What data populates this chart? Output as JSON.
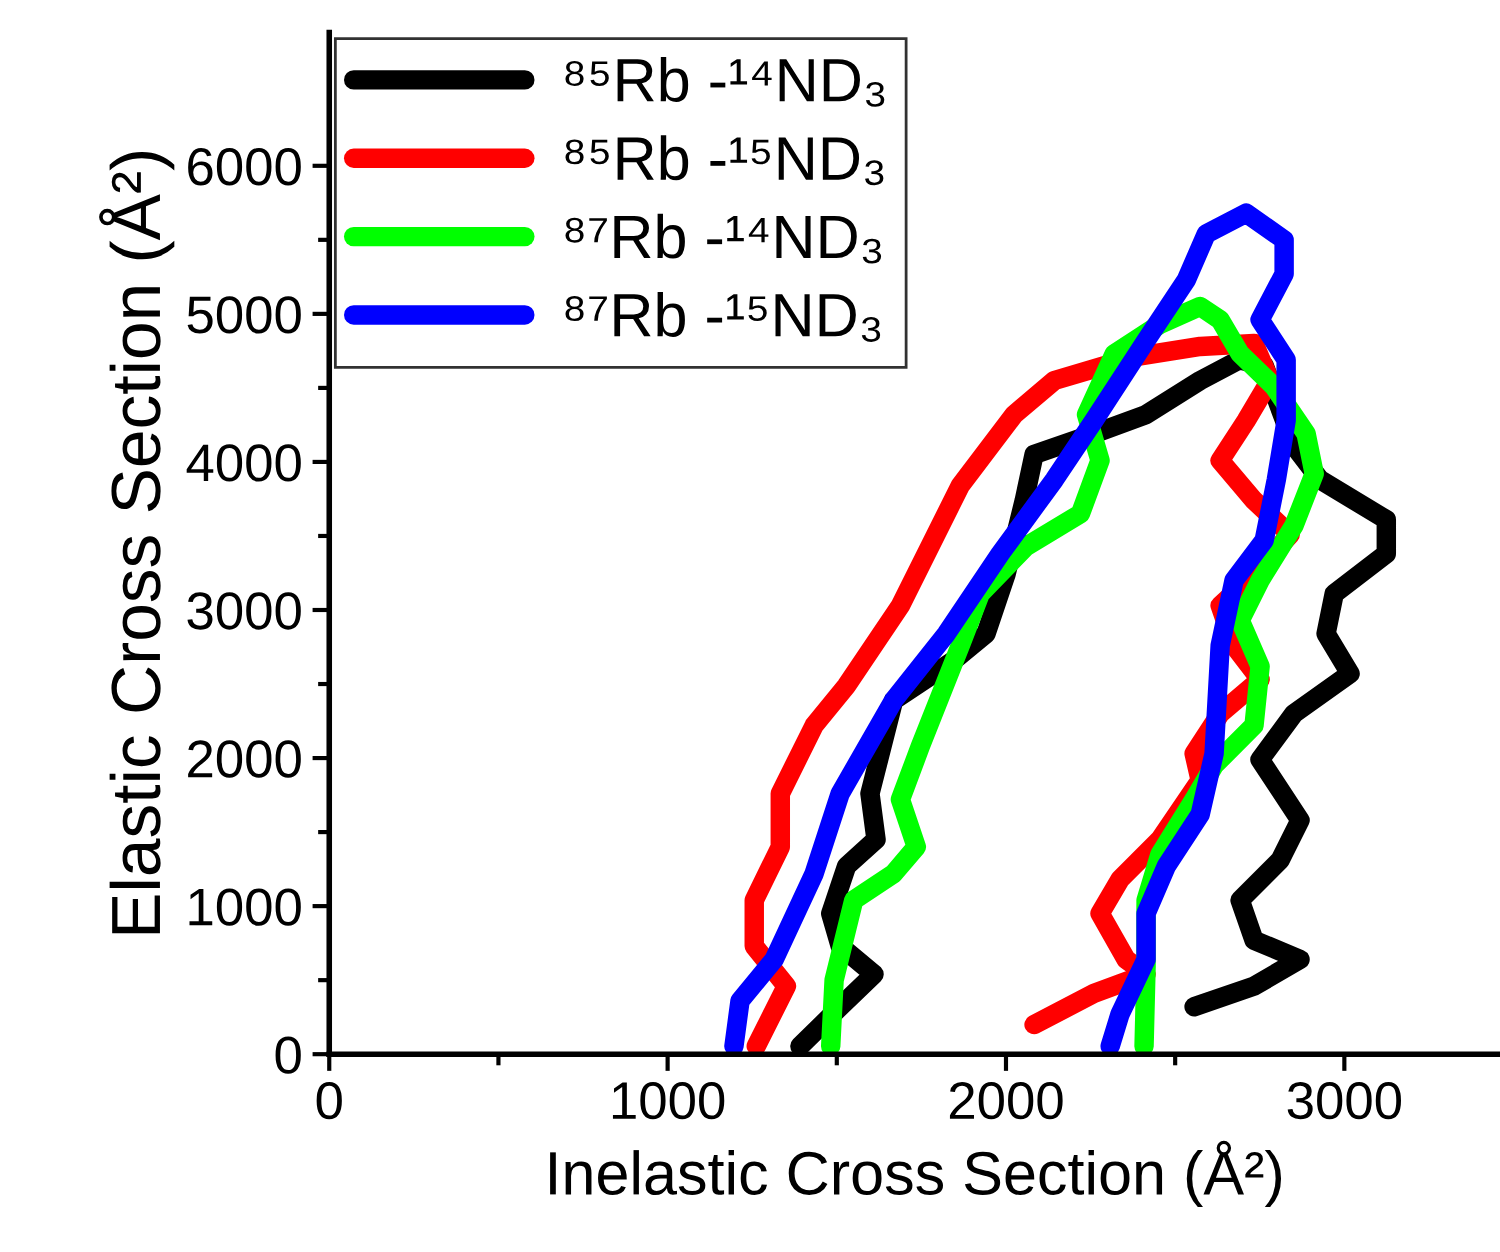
{
  "chart_data": {
    "type": "line",
    "xlabel": "Inelastic Cross Section (Å²)",
    "ylabel": "Elastic Cross Section (Å²)",
    "xlim": [
      0,
      3460
    ],
    "ylim": [
      0,
      6900
    ],
    "xticks": [
      0,
      {
        "value": 500,
        "label": null
      },
      1000,
      {
        "value": 1500,
        "label": null
      },
      2000,
      {
        "value": 2500,
        "label": null
      },
      3000
    ],
    "yticks": [
      0,
      {
        "value": 500,
        "label": null
      },
      1000,
      {
        "value": 1500,
        "label": null
      },
      2000,
      {
        "value": 2500,
        "label": null
      },
      3000,
      {
        "value": 3500,
        "label": null
      },
      4000,
      {
        "value": 4500,
        "label": null
      },
      5000,
      {
        "value": 5500,
        "label": null
      },
      6000
    ],
    "legend": "top left",
    "grid": false,
    "marker": "none",
    "line_style": "solid",
    "series": [
      {
        "name": "⁸⁵Rb -¹⁴ND₃",
        "color": "#000000",
        "x": [
          1391,
          1510,
          1610,
          1510,
          1482,
          1529,
          1616,
          1598,
          1668,
          1846,
          1941,
          2000,
          2054,
          2083,
          2260,
          2414,
          2574,
          2690,
          2763,
          2851,
          2928,
          3124,
          3124,
          2970,
          2946,
          3017,
          2851,
          2751,
          2869,
          2810,
          2692,
          2733,
          2869,
          2733,
          2556
        ],
        "values": [
          54,
          320,
          540,
          730,
          950,
          1270,
          1450,
          1760,
          2390,
          2660,
          2840,
          3240,
          3740,
          4050,
          4190,
          4320,
          4550,
          4690,
          4650,
          4110,
          3880,
          3610,
          3380,
          3110,
          2840,
          2570,
          2300,
          1990,
          1580,
          1310,
          1040,
          770,
          640,
          460,
          320
        ]
      },
      {
        "name": "⁸⁵Rb -¹⁵ND₃",
        "color": "#ff0000",
        "x": [
          1262,
          1351,
          1256,
          1256,
          1333,
          1333,
          1433,
          1529,
          1688,
          1865,
          2024,
          2143,
          2379,
          2574,
          2733,
          2780,
          2710,
          2633,
          2733,
          2840,
          2733,
          2633,
          2674,
          2751,
          2633,
          2556,
          2574,
          2455,
          2337,
          2278,
          2355,
          2414,
          2260,
          2083
        ],
        "values": [
          54,
          460,
          730,
          1040,
          1400,
          1760,
          2220,
          2490,
          3030,
          3840,
          4320,
          4550,
          4710,
          4780,
          4800,
          4550,
          4280,
          4010,
          3740,
          3510,
          3240,
          3030,
          2760,
          2530,
          2300,
          2030,
          1850,
          1450,
          1180,
          950,
          640,
          540,
          410,
          200
        ]
      },
      {
        "name": "⁸⁷Rb -¹⁴ND₃",
        "color": "#00ff00",
        "x": [
          1482,
          1492,
          1550,
          1668,
          1735,
          1688,
          1747,
          1865,
          1924,
          2060,
          2220,
          2278,
          2238,
          2320,
          2455,
          2574,
          2633,
          2692,
          2792,
          2887,
          2911,
          2851,
          2751,
          2692,
          2751,
          2733,
          2615,
          2556,
          2455,
          2414,
          2414,
          2408
        ],
        "values": [
          54,
          500,
          1040,
          1220,
          1400,
          1720,
          2080,
          2760,
          3110,
          3430,
          3650,
          4010,
          4320,
          4730,
          4930,
          5050,
          4960,
          4730,
          4510,
          4190,
          3920,
          3570,
          3200,
          2930,
          2620,
          2220,
          1950,
          1720,
          1350,
          1040,
          590,
          54
        ]
      },
      {
        "name": "⁸⁷Rb -¹⁵ND₃",
        "color": "#0000ff",
        "x": [
          1196,
          1214,
          1315,
          1433,
          1510,
          1668,
          1824,
          1983,
          2143,
          2260,
          2414,
          2533,
          2592,
          2710,
          2822,
          2822,
          2751,
          2828,
          2828,
          2799,
          2763,
          2674,
          2633,
          2615,
          2574,
          2474,
          2414,
          2414,
          2337,
          2308
        ],
        "values": [
          54,
          360,
          640,
          1220,
          1760,
          2390,
          2840,
          3380,
          3880,
          4280,
          4820,
          5230,
          5540,
          5680,
          5500,
          5270,
          4960,
          4690,
          4280,
          3880,
          3470,
          3200,
          2760,
          2030,
          1620,
          1270,
          950,
          640,
          270,
          54
        ]
      }
    ]
  }
}
